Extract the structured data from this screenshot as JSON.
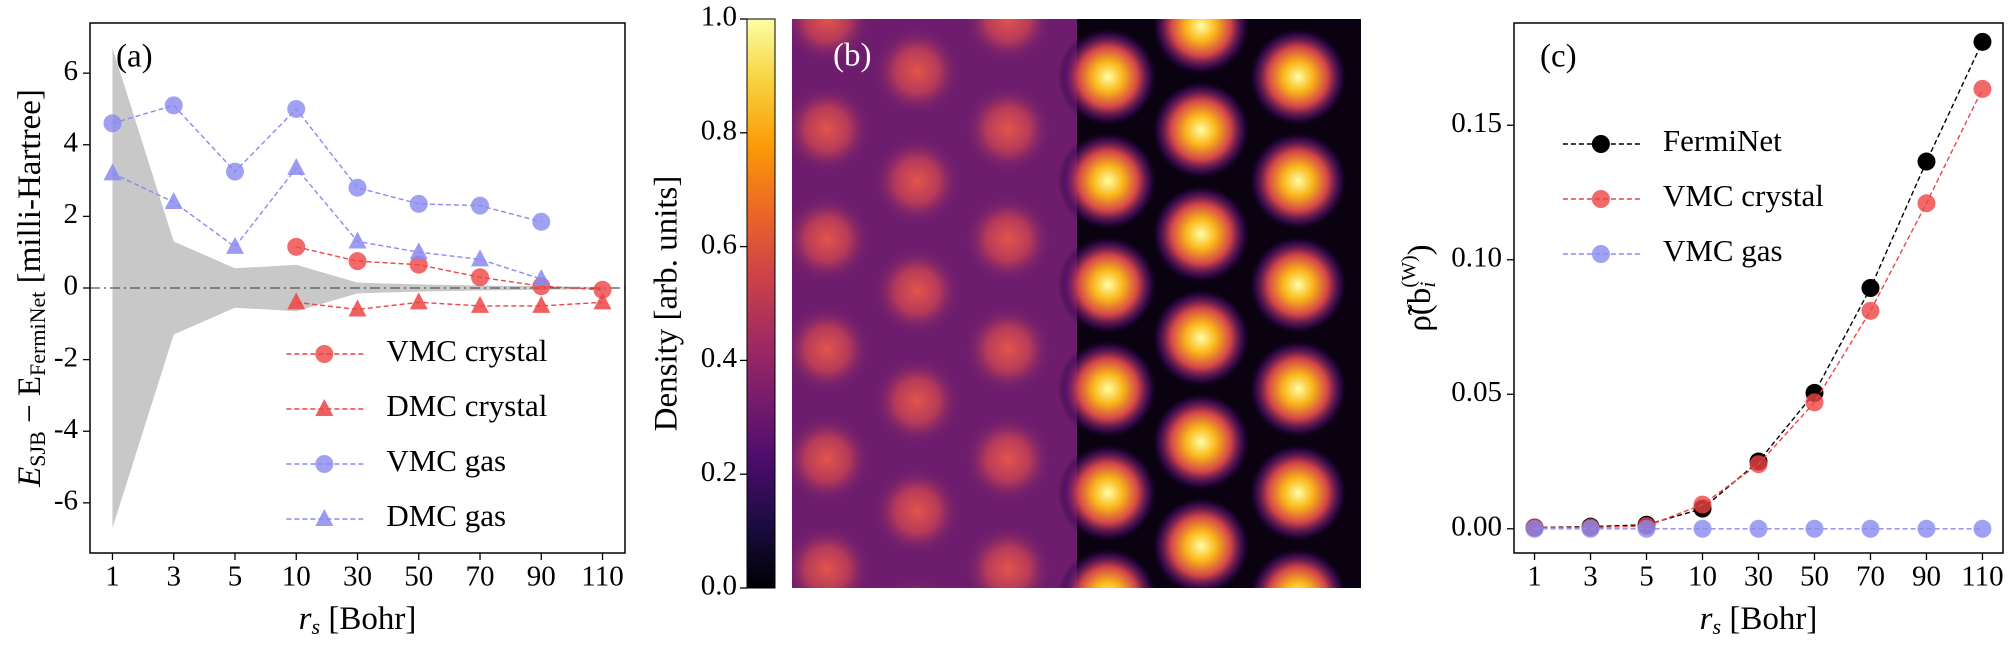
{
  "chart_data": [
    {
      "type": "line",
      "annotation": "(a)",
      "xlabel_parts": [
        "r",
        "s",
        " [Bohr]"
      ],
      "ylabel_parts": [
        "E",
        "SJB",
        " − E",
        "FermiNet",
        " [milli-Hartree]"
      ],
      "categories": [
        "1",
        "3",
        "5",
        "10",
        "30",
        "50",
        "70",
        "90",
        "110"
      ],
      "ylim": [
        -7.4,
        7.4
      ],
      "yticks": [
        -6,
        -4,
        -2,
        0,
        2,
        4,
        6
      ],
      "band": [
        6.7,
        1.3,
        0.55,
        0.65,
        0.15,
        0.1,
        0.07,
        0.05,
        0.03
      ],
      "band_color": "#c8c8c8",
      "zero_line": true,
      "legend": "lower right",
      "series": [
        {
          "name": "VMC crystal",
          "color": "#ee4444",
          "marker": "circle",
          "values": [
            null,
            null,
            null,
            1.15,
            0.75,
            0.65,
            0.3,
            0.05,
            -0.05
          ]
        },
        {
          "name": "DMC crystal",
          "color": "#ee4444",
          "marker": "triangle",
          "values": [
            null,
            null,
            null,
            -0.4,
            -0.6,
            -0.4,
            -0.5,
            -0.5,
            -0.4
          ]
        },
        {
          "name": "VMC gas",
          "color": "#8a8af0",
          "marker": "circle",
          "values": [
            4.6,
            5.1,
            3.25,
            5.0,
            2.8,
            2.35,
            2.3,
            1.85,
            null
          ]
        },
        {
          "name": "DMC gas",
          "color": "#8a8af0",
          "marker": "triangle",
          "values": [
            3.2,
            2.4,
            1.15,
            3.35,
            1.3,
            1.0,
            0.8,
            0.25,
            null
          ]
        }
      ]
    },
    {
      "type": "colorbar",
      "annotation": "(b)",
      "label": "Density [arb. units]",
      "colormap": "inferno",
      "ylim": [
        0,
        1
      ],
      "yticks": [
        {
          "value": 0,
          "label": "0.0"
        },
        0.2,
        0.4,
        0.6,
        0.8,
        {
          "value": 1,
          "label": "1.0"
        }
      ]
    },
    {
      "type": "line",
      "annotation": "(c)",
      "xlabel_parts": [
        "r",
        "s",
        " [Bohr]"
      ],
      "ylabel_parts": [
        "ρ̃(b",
        "i",
        "(W)",
        ")"
      ],
      "categories": [
        "1",
        "3",
        "5",
        "10",
        "30",
        "50",
        "70",
        "90",
        "110"
      ],
      "ylim": [
        -0.009,
        0.188
      ],
      "yticks": [
        {
          "value": 0,
          "label": "0.00"
        },
        {
          "value": 0.05,
          "label": "0.05"
        },
        {
          "value": 0.1,
          "label": "0.10"
        },
        {
          "value": 0.15,
          "label": "0.15"
        }
      ],
      "legend": "upper left",
      "series": [
        {
          "name": "FermiNet",
          "color": "#000000",
          "marker": "circle",
          "values": [
            0.0005,
            0.0008,
            0.0015,
            0.0075,
            0.025,
            0.0505,
            0.0895,
            0.1365,
            0.181
          ]
        },
        {
          "name": "VMC crystal",
          "color": "#ee4444",
          "marker": "circle",
          "values": [
            0.0005,
            0.0005,
            0.001,
            0.009,
            0.024,
            0.047,
            0.081,
            0.121,
            0.1635
          ]
        },
        {
          "name": "VMC gas",
          "color": "#8a8af0",
          "marker": "circle",
          "values": [
            0,
            0,
            0,
            0,
            0,
            0,
            0,
            0,
            0
          ]
        }
      ]
    }
  ]
}
